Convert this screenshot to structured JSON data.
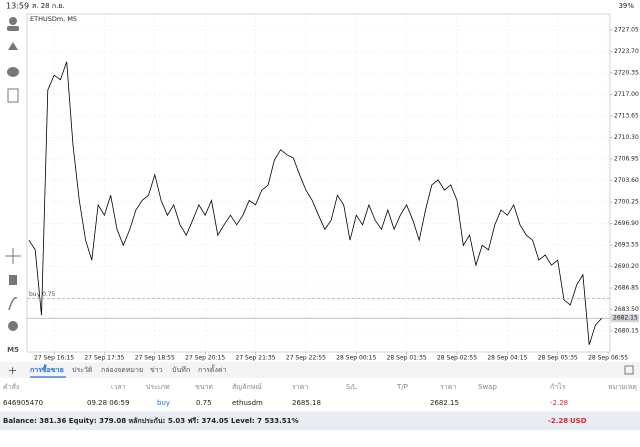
{
  "status_bar": {
    "time": "13:59",
    "date": "ส. 28 ก.ย.",
    "battery": "39%"
  },
  "chart_data": {
    "type": "line",
    "title": "ETHUSDm, M5",
    "color": "#000000",
    "values": [
      2694.3,
      2692.8,
      2682.6,
      2717.7,
      2720.0,
      2719.3,
      2722.1,
      2709.1,
      2700.5,
      2694.3,
      2691.2,
      2699.8,
      2698.2,
      2701.3,
      2696.0,
      2693.5,
      2695.9,
      2699.0,
      2700.5,
      2701.3,
      2704.5,
      2700.5,
      2698.2,
      2699.8,
      2696.7,
      2695.1,
      2697.4,
      2699.8,
      2698.2,
      2700.5,
      2695.1,
      2696.7,
      2698.2,
      2696.7,
      2698.2,
      2700.5,
      2699.8,
      2702.1,
      2702.9,
      2706.8,
      2708.4,
      2707.6,
      2707.1,
      2704.5,
      2702.1,
      2700.5,
      2698.2,
      2696.0,
      2697.4,
      2701.3,
      2699.8,
      2694.3,
      2698.2,
      2696.7,
      2699.8,
      2697.4,
      2696.0,
      2699.0,
      2696.0,
      2698.2,
      2699.8,
      2697.4,
      2694.3,
      2699.0,
      2702.9,
      2703.7,
      2702.1,
      2702.9,
      2700.5,
      2693.5,
      2695.1,
      2690.4,
      2693.5,
      2692.8,
      2696.7,
      2699.0,
      2698.2,
      2699.8,
      2696.7,
      2695.1,
      2694.3,
      2691.2,
      2692.0,
      2690.4,
      2691.2,
      2685.0,
      2684.2,
      2687.3,
      2688.9,
      2678.0,
      2681.1,
      2682.15
    ],
    "xlim": [
      -0.3,
      92.3
    ],
    "xticks": [
      {
        "value": 4,
        "label": "27 Sep 16:15"
      },
      {
        "value": 12,
        "label": "27 Sep 17:35"
      },
      {
        "value": 20,
        "label": "27 Sep 18:55"
      },
      {
        "value": 28,
        "label": "27 Sep 20:15"
      },
      {
        "value": 36,
        "label": "27 Sep 21:35"
      },
      {
        "value": 44,
        "label": "27 Sep 22:55"
      },
      {
        "value": 52,
        "label": "28 Sep 00:15"
      },
      {
        "value": 60,
        "label": "28 Sep 01:35"
      },
      {
        "value": 68,
        "label": "28 Sep 02:55"
      },
      {
        "value": 76,
        "label": "28 Sep 04:15"
      },
      {
        "value": 84,
        "label": "28 Sep 05:35"
      },
      {
        "value": 92,
        "label": "28 Sep 06:55"
      }
    ],
    "ylim": [
      2676.88,
      2729.54
    ],
    "yticks": [
      2727.05,
      {
        "value": 2723.7,
        "label": "2723.70"
      },
      2720.35,
      {
        "value": 2717,
        "label": "2717.00"
      },
      2713.65,
      {
        "value": 2710.3,
        "label": "2710.30"
      },
      2706.95,
      {
        "value": 2703.6,
        "label": "2703.60"
      },
      2700.25,
      {
        "value": 2696.9,
        "label": "2696.90"
      },
      2693.55,
      {
        "value": 2690.2,
        "label": "2690.20"
      },
      2686.85,
      {
        "value": 2683.5,
        "label": "2683.50"
      },
      2680.15
    ],
    "grid": true,
    "current_price": 2682.15,
    "position_line": {
      "label": "buy 0.75",
      "price": 2685.18
    }
  },
  "timeframe": "M5",
  "tabs": [
    "การซื้อขาย",
    "ประวัติ",
    "กล่องจดหมาย",
    "ข่าว",
    "บันทึก",
    "การตั้งค่า"
  ],
  "table": {
    "headers": [
      "คำสั่ง",
      "เวลา",
      "ประเภท",
      "ขนาด",
      "สัญลักษณ์",
      "ราคา",
      "S/L",
      "T/P",
      "ราคา",
      "Swap",
      "กำไร",
      "หมายเหตุ"
    ],
    "row": {
      "order": "646905470",
      "time": "09.28 06:59",
      "type": "buy",
      "volume": 0.75,
      "symbol": "ethusdm",
      "price": 2685.18,
      "price_current": 2682.15,
      "profit": -2.28
    },
    "total": {
      "profit": -2.28,
      "currency": "USD"
    }
  },
  "balance": "Balance: 381.36 Equity: 379.08 หลักประกัน: 5.03 ฟรี: 374.05 Level: 7 533.51%"
}
